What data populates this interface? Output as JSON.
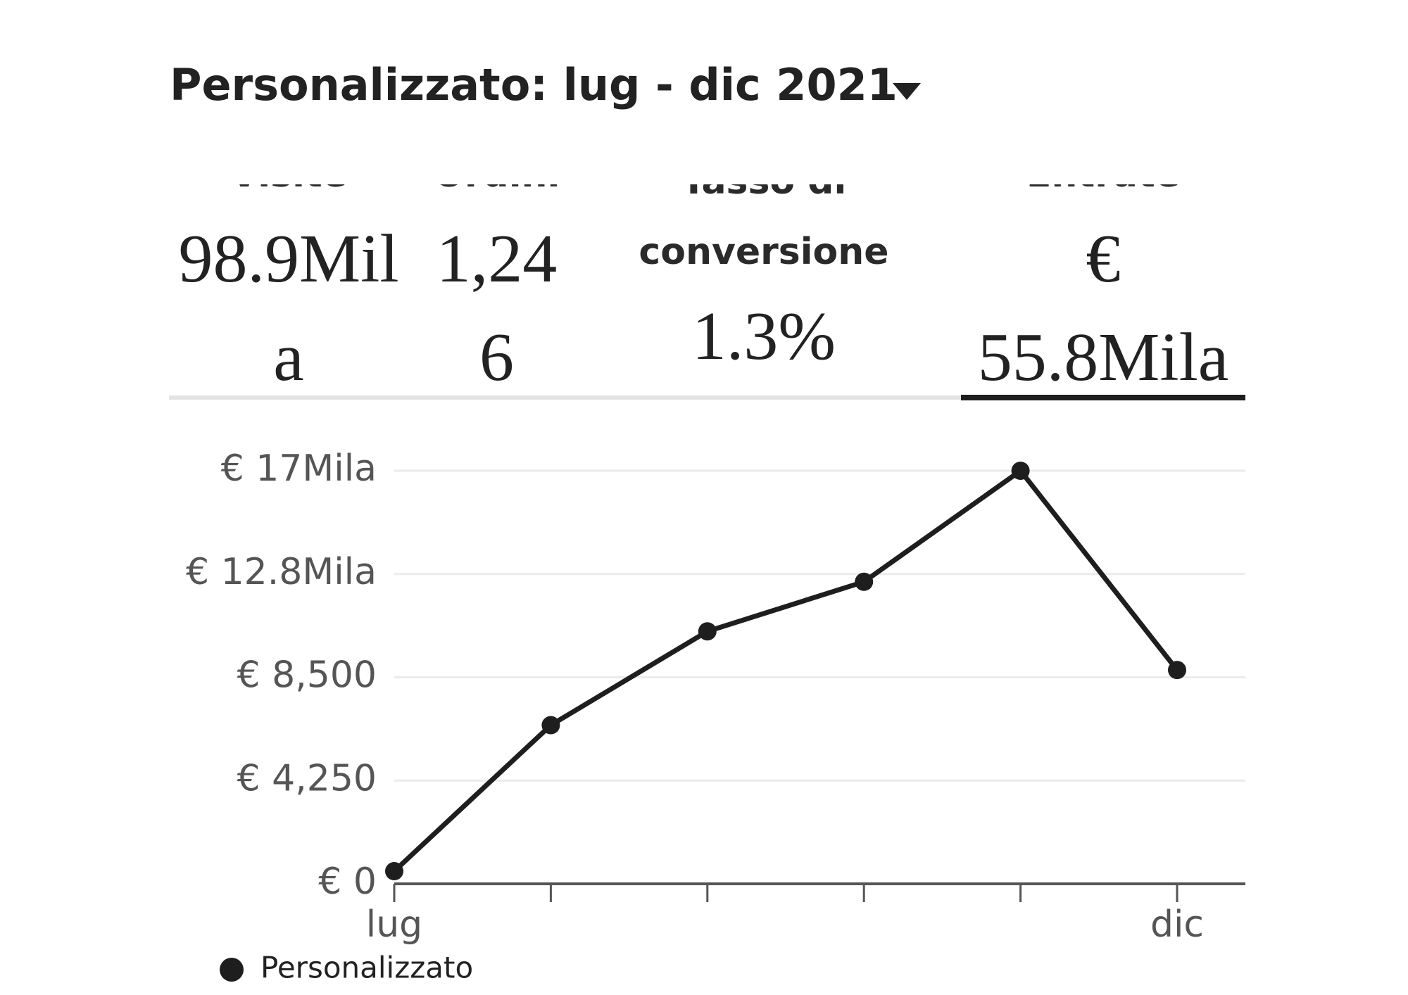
{
  "header": {
    "title": "Personalizzato: lug - dic 2021"
  },
  "stats": [
    {
      "label": "Visite",
      "value": "98.9Mila"
    },
    {
      "label": "Ordini",
      "value": "1,246"
    },
    {
      "label": "Tasso di conversione",
      "value": "1.3%"
    },
    {
      "label": "Entrate",
      "value": "€ 55.8Mila"
    }
  ],
  "chart_data": {
    "type": "line",
    "categories": [
      "lug",
      null,
      null,
      null,
      null,
      "dic"
    ],
    "series": [
      {
        "name": "Personalizzato",
        "color": "#1e1e1e",
        "values": [
          520,
          6530,
          10390,
          12430,
          17000,
          8800
        ]
      }
    ],
    "ylim": [
      0,
      17000
    ],
    "yticks": [
      {
        "value": 0,
        "label": "€ 0"
      },
      {
        "value": 4250,
        "label": "€ 4,250"
      },
      {
        "value": 8500,
        "label": "€ 8,500"
      },
      {
        "value": 12750,
        "label": "€ 12.8Mila"
      },
      {
        "value": 17000,
        "label": "€ 17Mila"
      }
    ],
    "grid": true
  }
}
